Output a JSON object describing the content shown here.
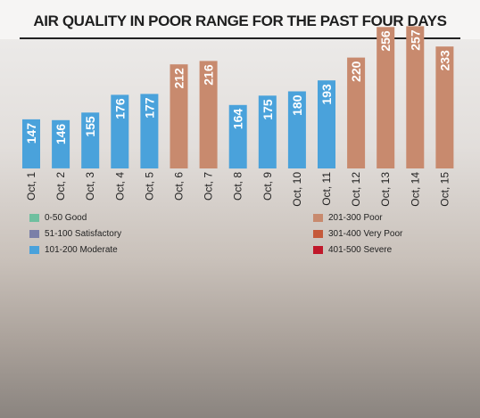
{
  "header": {
    "title": "AIR QUALITY IN POOR RANGE FOR THE PAST FOUR DAYS"
  },
  "legend": [
    {
      "label": "0-50 Good",
      "color": "#6fbf9f"
    },
    {
      "label": "51-100 Satisfactory",
      "color": "#7b7fa8"
    },
    {
      "label": "101-200 Moderate",
      "color": "#4aa2db"
    },
    {
      "label": "201-300 Poor",
      "color": "#c88a6e"
    },
    {
      "label": "301-400 Very Poor",
      "color": "#c5593a"
    },
    {
      "label": "401-500 Severe",
      "color": "#c0182a"
    }
  ],
  "chart_data": {
    "type": "bar",
    "title": "AIR QUALITY IN POOR RANGE FOR THE PAST FOUR DAYS",
    "categories": [
      "Oct, 1",
      "Oct, 2",
      "Oct, 3",
      "Oct, 4",
      "Oct, 5",
      "Oct, 6",
      "Oct, 7",
      "Oct, 8",
      "Oct, 9",
      "Oct, 10",
      "Oct, 11",
      "Oct, 12",
      "Oct, 13",
      "Oct, 14",
      "Oct, 15"
    ],
    "values": [
      147,
      146,
      155,
      176,
      177,
      212,
      216,
      164,
      175,
      180,
      193,
      220,
      256,
      257,
      233
    ],
    "bar_category": [
      "Moderate",
      "Moderate",
      "Moderate",
      "Moderate",
      "Moderate",
      "Poor",
      "Poor",
      "Moderate",
      "Moderate",
      "Moderate",
      "Moderate",
      "Poor",
      "Poor",
      "Poor",
      "Poor"
    ],
    "colors": {
      "Moderate": "#4aa2db",
      "Poor": "#c88a6e"
    },
    "xlabel": "",
    "ylabel": "",
    "grid": false,
    "legend_position": "bottom-left"
  }
}
